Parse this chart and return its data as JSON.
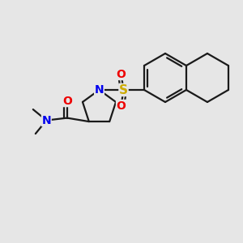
{
  "bg_color": "#e6e6e6",
  "bond_color": "#1a1a1a",
  "bond_width": 1.6,
  "atom_colors": {
    "N": "#0000ee",
    "O": "#ee0000",
    "S": "#ccaa00",
    "C": "#1a1a1a"
  }
}
